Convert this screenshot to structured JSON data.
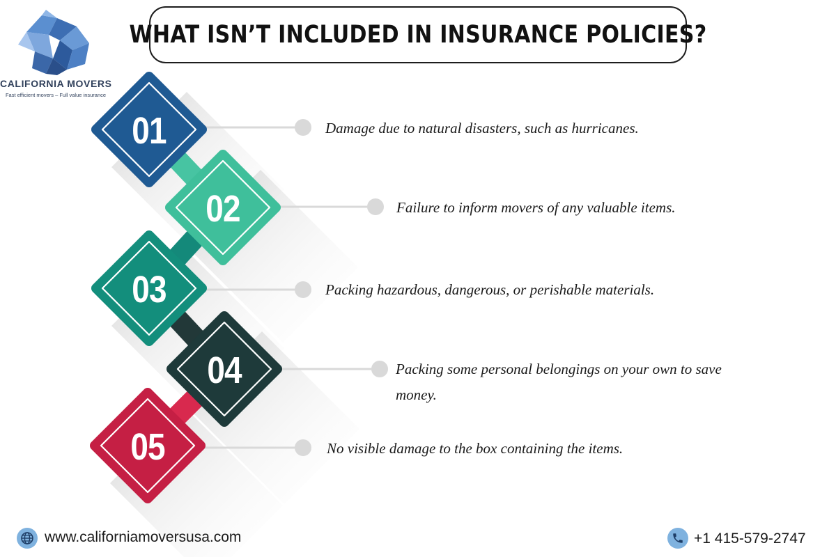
{
  "brand": {
    "name": "CALIFORNIA MOVERS",
    "tagline": "Fast efficient movers – Full value insurance"
  },
  "title": "WHAT ISN’T INCLUDED IN INSURANCE POLICIES?",
  "items": [
    {
      "number": "01",
      "color": "#1f5a93",
      "text": "Damage due to natural disasters, such as hurricanes."
    },
    {
      "number": "02",
      "color": "#3fbf9b",
      "text": "Failure to inform movers of any valuable items."
    },
    {
      "number": "03",
      "color": "#138e7c",
      "text": "Packing hazardous, dangerous, or perishable materials."
    },
    {
      "number": "04",
      "color": "#1e3a3a",
      "text": "Packing some personal belongings on your own to save money."
    },
    {
      "number": "05",
      "color": "#c51f44",
      "text": "No visible damage to the box containing the items."
    }
  ],
  "connector_colors": [
    "#47c4a2",
    "#14897a",
    "#223838",
    "#d8294e"
  ],
  "footer": {
    "website": "www.californiamoversusa.com",
    "phone": "+1 415-579-2747",
    "globe_icon": "globe-icon",
    "phone_icon": "phone-icon"
  }
}
